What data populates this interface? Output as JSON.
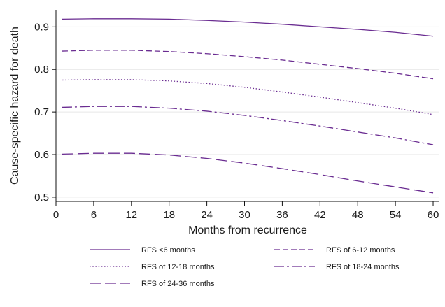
{
  "chart_data": {
    "type": "line",
    "title": "",
    "xlabel": "Months from recurrence",
    "ylabel": "Cause-specific hazard for death",
    "xlim": [
      0,
      61
    ],
    "ylim": [
      0.49,
      0.94
    ],
    "xticks": [
      0,
      6,
      12,
      18,
      24,
      30,
      36,
      42,
      48,
      54,
      60
    ],
    "yticks": [
      0.5,
      0.6,
      0.7,
      0.8,
      0.9
    ],
    "grid": "horizontal",
    "legend_position": "bottom",
    "line_color": "#6a2c91",
    "x": [
      1,
      6,
      12,
      18,
      24,
      30,
      36,
      42,
      48,
      54,
      60
    ],
    "series": [
      {
        "name": "RFS <6 months",
        "dash": "solid",
        "values": [
          0.918,
          0.919,
          0.919,
          0.918,
          0.915,
          0.911,
          0.906,
          0.9,
          0.894,
          0.887,
          0.878
        ]
      },
      {
        "name": "RFS of 6-12 months",
        "dash": "dash",
        "values": [
          0.843,
          0.845,
          0.845,
          0.842,
          0.837,
          0.83,
          0.822,
          0.812,
          0.802,
          0.791,
          0.778
        ]
      },
      {
        "name": "RFS of 12-18 months",
        "dash": "dot",
        "values": [
          0.775,
          0.776,
          0.776,
          0.773,
          0.767,
          0.758,
          0.747,
          0.735,
          0.722,
          0.709,
          0.694
        ]
      },
      {
        "name": "RFS of 18-24 months",
        "dash": "dashdot",
        "values": [
          0.711,
          0.713,
          0.713,
          0.709,
          0.702,
          0.692,
          0.68,
          0.667,
          0.653,
          0.639,
          0.623
        ]
      },
      {
        "name": "RFS of 24-36 months",
        "dash": "longdash",
        "values": [
          0.601,
          0.603,
          0.603,
          0.599,
          0.591,
          0.58,
          0.567,
          0.553,
          0.538,
          0.524,
          0.51
        ]
      }
    ]
  }
}
